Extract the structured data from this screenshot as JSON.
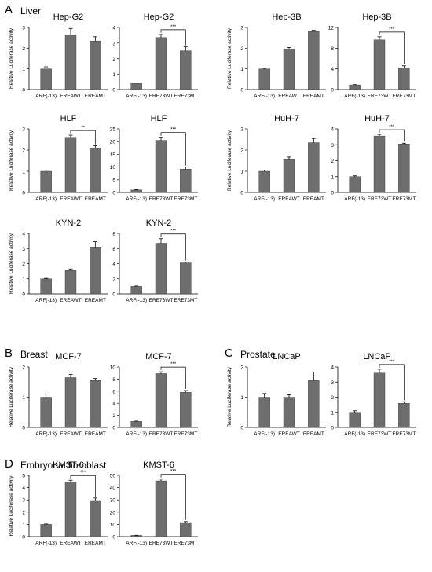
{
  "sections": [
    {
      "letter": "A",
      "name": "Liver"
    },
    {
      "letter": "B",
      "name": "Breast"
    },
    {
      "letter": "C",
      "name": "Prostate"
    },
    {
      "letter": "D",
      "name": "Embryonal fibroblast"
    }
  ],
  "colors": {
    "bar": "#6e6e6e",
    "axis": "#000000",
    "text": "#000000"
  },
  "chart_data": [
    {
      "type": "bar",
      "title": "Hep-G2",
      "ylabel": "Relative Luciferase activity",
      "ylim": [
        0,
        3
      ],
      "yticks": [
        0,
        1,
        2,
        3
      ],
      "categories": [
        "ARF(-13)",
        "EREAWT",
        "EREAMT"
      ],
      "values": [
        1.0,
        2.65,
        2.35
      ],
      "errors": [
        0.1,
        0.3,
        0.2
      ],
      "significance": []
    },
    {
      "type": "bar",
      "title": "Hep-G2",
      "ylabel": "",
      "ylim": [
        0,
        4
      ],
      "yticks": [
        0,
        1,
        2,
        3,
        4
      ],
      "categories": [
        "ARF(-13)",
        "ERE73WT",
        "ERE73MT"
      ],
      "values": [
        0.4,
        3.35,
        2.5
      ],
      "errors": [
        0.02,
        0.2,
        0.25
      ],
      "significance": [
        {
          "from": 1,
          "to": 2,
          "label": "***"
        }
      ]
    },
    {
      "type": "bar",
      "title": "Hep-3B",
      "ylabel": "Relative Luciferase activity",
      "ylim": [
        0,
        3
      ],
      "yticks": [
        0,
        1,
        2,
        3
      ],
      "categories": [
        "ARF(-13)",
        "EREAWT",
        "EREAMT"
      ],
      "values": [
        1.0,
        1.95,
        2.8
      ],
      "errors": [
        0.03,
        0.08,
        0.06
      ],
      "significance": []
    },
    {
      "type": "bar",
      "title": "Hep-3B",
      "ylabel": "",
      "ylim": [
        0,
        12
      ],
      "yticks": [
        0,
        4,
        8,
        12
      ],
      "categories": [
        "ARF(-13)",
        "ERE73WT",
        "ERE73MT"
      ],
      "values": [
        0.9,
        9.6,
        4.2
      ],
      "errors": [
        0.05,
        0.6,
        0.4
      ],
      "significance": [
        {
          "from": 1,
          "to": 2,
          "label": "***"
        }
      ]
    },
    {
      "type": "bar",
      "title": "HLF",
      "ylabel": "Relative Luciferase activity",
      "ylim": [
        0,
        3
      ],
      "yticks": [
        0,
        1,
        2,
        3
      ],
      "categories": [
        "ARF(-13)",
        "EREAWT",
        "EREAMT"
      ],
      "values": [
        1.0,
        2.6,
        2.1
      ],
      "errors": [
        0.05,
        0.1,
        0.1
      ],
      "significance": [
        {
          "from": 1,
          "to": 2,
          "label": "**"
        }
      ]
    },
    {
      "type": "bar",
      "title": "HLF",
      "ylabel": "",
      "ylim": [
        0,
        25
      ],
      "yticks": [
        0,
        5,
        10,
        15,
        20,
        25
      ],
      "categories": [
        "ARF(-13)",
        "ERE73WT",
        "ERE73MT"
      ],
      "values": [
        1.0,
        20.5,
        9.2
      ],
      "errors": [
        0.1,
        1.2,
        0.8
      ],
      "significance": [
        {
          "from": 1,
          "to": 2,
          "label": "***"
        }
      ]
    },
    {
      "type": "bar",
      "title": "HuH-7",
      "ylabel": "Relative Luciferase activity",
      "ylim": [
        0,
        3
      ],
      "yticks": [
        0,
        1,
        2,
        3
      ],
      "categories": [
        "ARF(-13)",
        "EREAWT",
        "EREAMT"
      ],
      "values": [
        1.0,
        1.55,
        2.35
      ],
      "errors": [
        0.06,
        0.12,
        0.2
      ],
      "significance": []
    },
    {
      "type": "bar",
      "title": "HuH-7",
      "ylabel": "",
      "ylim": [
        0,
        4
      ],
      "yticks": [
        0,
        1,
        2,
        3,
        4
      ],
      "categories": [
        "ARF(-13)",
        "ERE73WT",
        "ERE73MT"
      ],
      "values": [
        1.0,
        3.55,
        3.05
      ],
      "errors": [
        0.05,
        0.1,
        0.05
      ],
      "significance": [
        {
          "from": 1,
          "to": 2,
          "label": "***"
        }
      ]
    },
    {
      "type": "bar",
      "title": "KYN-2",
      "ylabel": "Relative Luciferase activity",
      "ylim": [
        0,
        4
      ],
      "yticks": [
        0,
        1,
        2,
        3,
        4
      ],
      "categories": [
        "ARF(-13)",
        "EREAWT",
        "EREAMT"
      ],
      "values": [
        1.0,
        1.55,
        3.1
      ],
      "errors": [
        0.03,
        0.1,
        0.35
      ],
      "significance": []
    },
    {
      "type": "bar",
      "title": "KYN-2",
      "ylabel": "",
      "ylim": [
        0,
        8
      ],
      "yticks": [
        0,
        2,
        4,
        6,
        8
      ],
      "categories": [
        "ARF(-13)",
        "ERE73WT",
        "ERE73MT"
      ],
      "values": [
        1.0,
        6.7,
        4.1
      ],
      "errors": [
        0.05,
        0.6,
        0.1
      ],
      "significance": [
        {
          "from": 1,
          "to": 2,
          "label": "***"
        }
      ]
    },
    {
      "type": "bar",
      "title": "MCF-7",
      "ylabel": "Relative Luciferase activity",
      "ylim": [
        0,
        2
      ],
      "yticks": [
        0,
        1,
        2
      ],
      "categories": [
        "ARF(-13)",
        "EREAWT",
        "EREAMT"
      ],
      "values": [
        1.0,
        1.65,
        1.55
      ],
      "errors": [
        0.1,
        0.1,
        0.07
      ],
      "significance": []
    },
    {
      "type": "bar",
      "title": "MCF-7",
      "ylabel": "",
      "ylim": [
        0,
        10
      ],
      "yticks": [
        0,
        2,
        4,
        6,
        8,
        10
      ],
      "categories": [
        "ARF(-13)",
        "ERE73WT",
        "ERE73MT"
      ],
      "values": [
        1.0,
        8.9,
        5.8
      ],
      "errors": [
        0.05,
        0.3,
        0.3
      ],
      "significance": [
        {
          "from": 1,
          "to": 2,
          "label": "***"
        }
      ]
    },
    {
      "type": "bar",
      "title": "LNCaP",
      "ylabel": "Relative Luciferase activity",
      "ylim": [
        0,
        2
      ],
      "yticks": [
        0,
        1,
        2
      ],
      "categories": [
        "ARF(-13)",
        "EREAWT",
        "EREAMT"
      ],
      "values": [
        1.0,
        1.0,
        1.55
      ],
      "errors": [
        0.12,
        0.08,
        0.28
      ],
      "significance": []
    },
    {
      "type": "bar",
      "title": "LNCaP",
      "ylabel": "",
      "ylim": [
        0,
        4
      ],
      "yticks": [
        0,
        1,
        2,
        3,
        4
      ],
      "categories": [
        "ARF(-13)",
        "ERE73WT",
        "ERE73MT"
      ],
      "values": [
        1.0,
        3.6,
        1.6
      ],
      "errors": [
        0.1,
        0.25,
        0.1
      ],
      "significance": [
        {
          "from": 1,
          "to": 2,
          "label": "***"
        }
      ]
    },
    {
      "type": "bar",
      "title": "KMST-6",
      "ylabel": "Relative Luciferase activity",
      "ylim": [
        0,
        5
      ],
      "yticks": [
        0,
        1,
        2,
        3,
        4,
        5
      ],
      "categories": [
        "ARF(-13)",
        "EREAWT",
        "EREAMT"
      ],
      "values": [
        1.0,
        4.45,
        2.95
      ],
      "errors": [
        0.03,
        0.15,
        0.2
      ],
      "significance": [
        {
          "from": 1,
          "to": 2,
          "label": "***"
        }
      ]
    },
    {
      "type": "bar",
      "title": "KMST-6",
      "ylabel": "",
      "ylim": [
        0,
        50
      ],
      "yticks": [
        0,
        10,
        20,
        30,
        40,
        50
      ],
      "categories": [
        "ARF(-13)",
        "ERE73WT",
        "ERE73MT"
      ],
      "values": [
        1.0,
        45.5,
        11.5
      ],
      "errors": [
        0.1,
        1.5,
        0.8
      ],
      "significance": [
        {
          "from": 1,
          "to": 2,
          "label": "***"
        }
      ]
    }
  ]
}
